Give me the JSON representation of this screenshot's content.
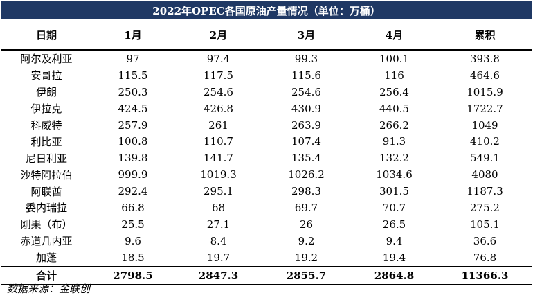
{
  "title": "2022年OPEC各国原油产量情况（单位：万桶）",
  "headers": [
    "日期",
    "1月",
    "2月",
    "3月",
    "4月",
    "累积"
  ],
  "rows": [
    [
      "阿尔及利亚",
      "97",
      "97.4",
      "99.3",
      "100.1",
      "393.8"
    ],
    [
      "安哥拉",
      "115.5",
      "117.5",
      "115.6",
      "116",
      "464.6"
    ],
    [
      "伊朗",
      "250.3",
      "254.6",
      "254.6",
      "256.4",
      "1015.9"
    ],
    [
      "伊拉克",
      "424.5",
      "426.8",
      "430.9",
      "440.5",
      "1722.7"
    ],
    [
      "科威特",
      "257.9",
      "261",
      "263.9",
      "266.2",
      "1049"
    ],
    [
      "利比亚",
      "100.8",
      "110.7",
      "107.4",
      "91.3",
      "410.2"
    ],
    [
      "尼日利亚",
      "139.8",
      "141.7",
      "135.4",
      "132.2",
      "549.1"
    ],
    [
      "沙特阿拉伯",
      "999.9",
      "1019.3",
      "1026.2",
      "1034.6",
      "4080"
    ],
    [
      "阿联酋",
      "292.4",
      "295.1",
      "298.3",
      "301.5",
      "1187.3"
    ],
    [
      "委内瑞拉",
      "66.8",
      "68",
      "69.7",
      "70.7",
      "275.2"
    ],
    [
      "刚果（布）",
      "25.5",
      "27.1",
      "26",
      "26.5",
      "105.1"
    ],
    [
      "赤道几内亚",
      "9.6",
      "8.4",
      "9.2",
      "9.4",
      "36.6"
    ],
    [
      "加蓬",
      "18.5",
      "19.7",
      "19.2",
      "19.4",
      "76.8"
    ]
  ],
  "total": [
    "合计",
    "2798.5",
    "2847.3",
    "2855.7",
    "2864.8",
    "11366.3"
  ],
  "source": "数据来源：金联创",
  "colors": {
    "title_bg": "#1f3864",
    "title_fg": "#ffffff"
  }
}
